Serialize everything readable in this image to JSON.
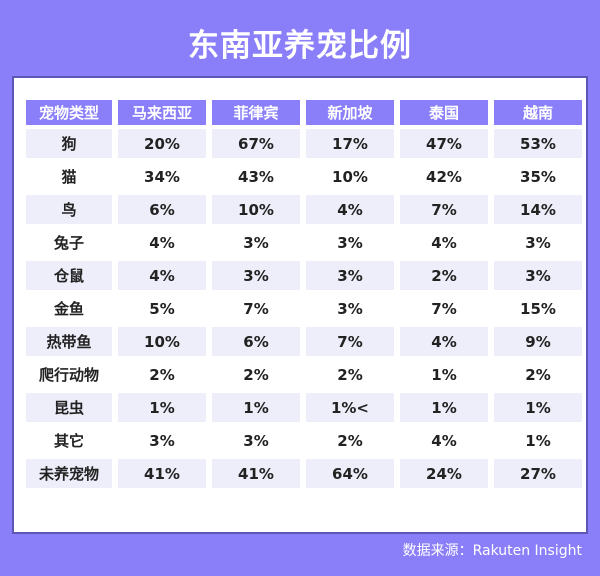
{
  "title": "东南亚养宠比例",
  "source": "数据来源：Rakuten Insight",
  "chart_data": {
    "type": "table",
    "header": [
      "宠物类型",
      "马来西亚",
      "菲律宾",
      "新加坡",
      "泰国",
      "越南"
    ],
    "rows": [
      [
        "狗",
        "20%",
        "67%",
        "17%",
        "47%",
        "53%"
      ],
      [
        "猫",
        "34%",
        "43%",
        "10%",
        "42%",
        "35%"
      ],
      [
        "鸟",
        "6%",
        "10%",
        "4%",
        "7%",
        "14%"
      ],
      [
        "兔子",
        "4%",
        "3%",
        "3%",
        "4%",
        "3%"
      ],
      [
        "仓鼠",
        "4%",
        "3%",
        "3%",
        "2%",
        "3%"
      ],
      [
        "金鱼",
        "5%",
        "7%",
        "3%",
        "7%",
        "15%"
      ],
      [
        "热带鱼",
        "10%",
        "6%",
        "7%",
        "4%",
        "9%"
      ],
      [
        "爬行动物",
        "2%",
        "2%",
        "2%",
        "1%",
        "2%"
      ],
      [
        "昆虫",
        "1%",
        "1%",
        "1%<",
        "1%",
        "1%"
      ],
      [
        "其它",
        "3%",
        "3%",
        "2%",
        "4%",
        "1%"
      ],
      [
        "未养宠物",
        "41%",
        "41%",
        "64%",
        "24%",
        "27%"
      ]
    ]
  }
}
